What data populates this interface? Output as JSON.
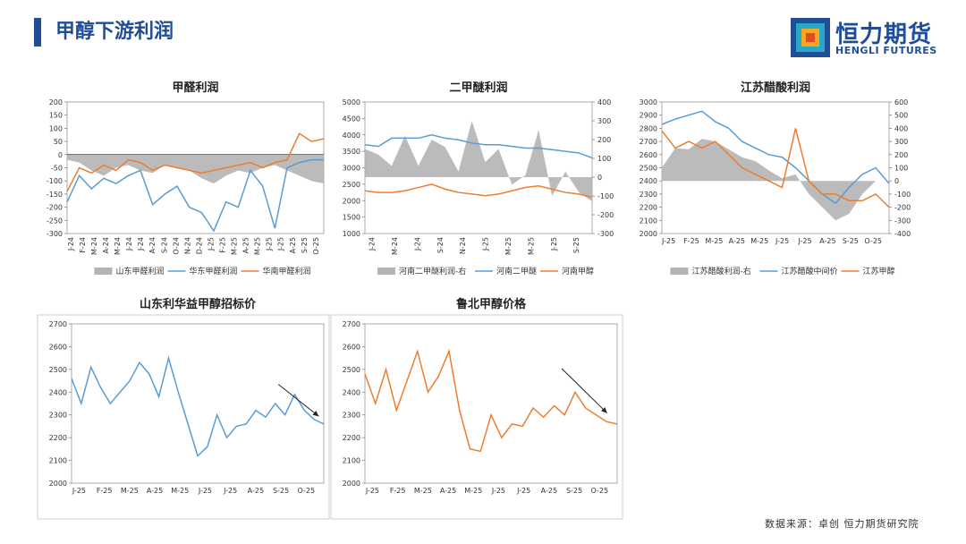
{
  "header": {
    "title": "甲醇下游利润"
  },
  "logo": {
    "name": "恒力期货",
    "sub": "HENGLI FUTURES"
  },
  "footer": {
    "source": "数据来源：卓创  恒力期货研究院"
  },
  "colors": {
    "blue": "#5b9bd5",
    "orange": "#ed7d31",
    "gray": "#b4b4b4",
    "brand": "#1f4e96"
  },
  "chart_data": [
    {
      "id": "c1",
      "type": "line",
      "title": "甲醛利润",
      "ylim": [
        -300,
        200
      ],
      "yticks": [
        -300,
        -250,
        -200,
        -150,
        -100,
        -50,
        0,
        50,
        100,
        150,
        200
      ],
      "xlabels": [
        "J-24",
        "F-24",
        "M-24",
        "A-24",
        "M-24",
        "J-24",
        "J-24",
        "A-24",
        "S-24",
        "O-24",
        "N-24",
        "D-24",
        "J-25",
        "F-25",
        "M-25",
        "A-25",
        "M-25",
        "J-25",
        "J-25",
        "A-25",
        "S-25",
        "O-25"
      ],
      "legend": [
        "山东甲醛利润",
        "华东甲醛利润",
        "华南甲醛利润"
      ],
      "series": [
        {
          "name": "山东甲醛利润",
          "kind": "area",
          "color": "gray",
          "values": [
            -20,
            -30,
            -60,
            -80,
            -50,
            -40,
            -60,
            -70,
            -40,
            -50,
            -60,
            -90,
            -110,
            -80,
            -60,
            -70,
            -50,
            -40,
            -60,
            -80,
            -100,
            -110
          ]
        },
        {
          "name": "华东甲醛利润",
          "kind": "line",
          "color": "blue",
          "values": [
            -180,
            -80,
            -130,
            -90,
            -110,
            -80,
            -60,
            -190,
            -150,
            -120,
            -200,
            -220,
            -290,
            -180,
            -200,
            -60,
            -120,
            -280,
            -50,
            -30,
            -20,
            -20
          ]
        },
        {
          "name": "华南甲醛利润",
          "kind": "line",
          "color": "orange",
          "values": [
            -140,
            -50,
            -70,
            -40,
            -60,
            -20,
            -30,
            -60,
            -40,
            -50,
            -60,
            -70,
            -60,
            -50,
            -40,
            -30,
            -50,
            -30,
            -20,
            80,
            50,
            60
          ]
        }
      ]
    },
    {
      "id": "c2",
      "type": "line",
      "title": "二甲醚利润",
      "ylim": [
        1000,
        5000
      ],
      "yticks": [
        1000,
        1500,
        2000,
        2500,
        3000,
        3500,
        4000,
        4500,
        5000
      ],
      "y2lim": [
        -300,
        400
      ],
      "y2ticks": [
        -300,
        -200,
        -100,
        0,
        100,
        200,
        300,
        400
      ],
      "xlabels": [
        "J-24",
        "M-24",
        "J-24",
        "S-24",
        "N-24",
        "J-25",
        "M-25",
        "M-25",
        "J-25",
        "S-25"
      ],
      "legend": [
        "河南二甲醚利润-右",
        "河南二甲醚",
        "河南甲醇"
      ],
      "series": [
        {
          "name": "河南二甲醚利润-右",
          "kind": "area",
          "color": "gray",
          "axis": "right",
          "values": [
            150,
            120,
            60,
            220,
            60,
            200,
            160,
            30,
            300,
            80,
            150,
            -40,
            10,
            250,
            -100,
            30,
            -80,
            -130
          ]
        },
        {
          "name": "河南二甲醚",
          "kind": "line",
          "color": "blue",
          "values": [
            3700,
            3650,
            3900,
            3900,
            3900,
            4000,
            3900,
            3850,
            3750,
            3700,
            3700,
            3650,
            3600,
            3600,
            3550,
            3500,
            3450,
            3300
          ]
        },
        {
          "name": "河南甲醇",
          "kind": "line",
          "color": "orange",
          "values": [
            2300,
            2250,
            2250,
            2300,
            2400,
            2500,
            2350,
            2250,
            2200,
            2150,
            2200,
            2300,
            2400,
            2450,
            2350,
            2250,
            2200,
            2100
          ]
        }
      ]
    },
    {
      "id": "c3",
      "type": "line",
      "title": "江苏醋酸利润",
      "ylim": [
        2000,
        3000
      ],
      "yticks": [
        2000,
        2100,
        2200,
        2300,
        2400,
        2500,
        2600,
        2700,
        2800,
        2900,
        3000
      ],
      "y2lim": [
        -400,
        600
      ],
      "y2ticks": [
        -400,
        -300,
        -200,
        -100,
        0,
        100,
        200,
        300,
        400,
        500,
        600
      ],
      "xlabels": [
        "J-25",
        "F-25",
        "M-25",
        "A-25",
        "M-25",
        "J-25",
        "J-25",
        "A-25",
        "S-25",
        "O-25"
      ],
      "legend": [
        "江苏醋酸利润-右",
        "江苏醋酸中间价",
        "江苏甲醇"
      ],
      "series": [
        {
          "name": "江苏醋酸利润-右",
          "kind": "area",
          "color": "gray",
          "axis": "right",
          "values": [
            100,
            250,
            240,
            320,
            300,
            240,
            180,
            150,
            80,
            20,
            50,
            -100,
            -200,
            -300,
            -250,
            -100,
            0,
            0
          ]
        },
        {
          "name": "江苏醋酸中间价",
          "kind": "line",
          "color": "blue",
          "values": [
            2830,
            2870,
            2900,
            2930,
            2850,
            2800,
            2700,
            2650,
            2600,
            2580,
            2500,
            2400,
            2300,
            2230,
            2350,
            2450,
            2500,
            2380
          ]
        },
        {
          "name": "江苏甲醇",
          "kind": "line",
          "color": "orange",
          "values": [
            2780,
            2650,
            2700,
            2650,
            2700,
            2600,
            2500,
            2450,
            2400,
            2350,
            2800,
            2400,
            2300,
            2300,
            2250,
            2250,
            2300,
            2200
          ]
        }
      ]
    },
    {
      "id": "c4",
      "type": "line",
      "title": "山东利华益甲醇招标价",
      "ylim": [
        2000,
        2700
      ],
      "yticks": [
        2000,
        2100,
        2200,
        2300,
        2400,
        2500,
        2600,
        2700
      ],
      "xlabels": [
        "J-25",
        "F-25",
        "M-25",
        "A-25",
        "M-25",
        "J-25",
        "J-25",
        "A-25",
        "S-25",
        "O-25"
      ],
      "series": [
        {
          "name": "山东利华益甲醇招标价",
          "kind": "line",
          "color": "blue",
          "values": [
            2460,
            2350,
            2510,
            2420,
            2350,
            2400,
            2450,
            2530,
            2480,
            2380,
            2550,
            2400,
            2260,
            2120,
            2160,
            2300,
            2200,
            2250,
            2260,
            2320,
            2290,
            2350,
            2300,
            2390,
            2320,
            2280,
            2260
          ]
        }
      ]
    },
    {
      "id": "c5",
      "type": "line",
      "title": "鲁北甲醇价格",
      "ylim": [
        2000,
        2700
      ],
      "yticks": [
        2000,
        2100,
        2200,
        2300,
        2400,
        2500,
        2600,
        2700
      ],
      "xlabels": [
        "J-25",
        "F-25",
        "M-25",
        "A-25",
        "M-25",
        "J-25",
        "J-25",
        "A-25",
        "S-25",
        "O-25"
      ],
      "series": [
        {
          "name": "鲁北甲醇价格",
          "kind": "line",
          "color": "orange",
          "values": [
            2480,
            2350,
            2500,
            2320,
            2450,
            2580,
            2400,
            2470,
            2580,
            2320,
            2150,
            2140,
            2300,
            2200,
            2260,
            2250,
            2330,
            2290,
            2340,
            2300,
            2400,
            2330,
            2300,
            2270,
            2260
          ]
        }
      ]
    }
  ]
}
